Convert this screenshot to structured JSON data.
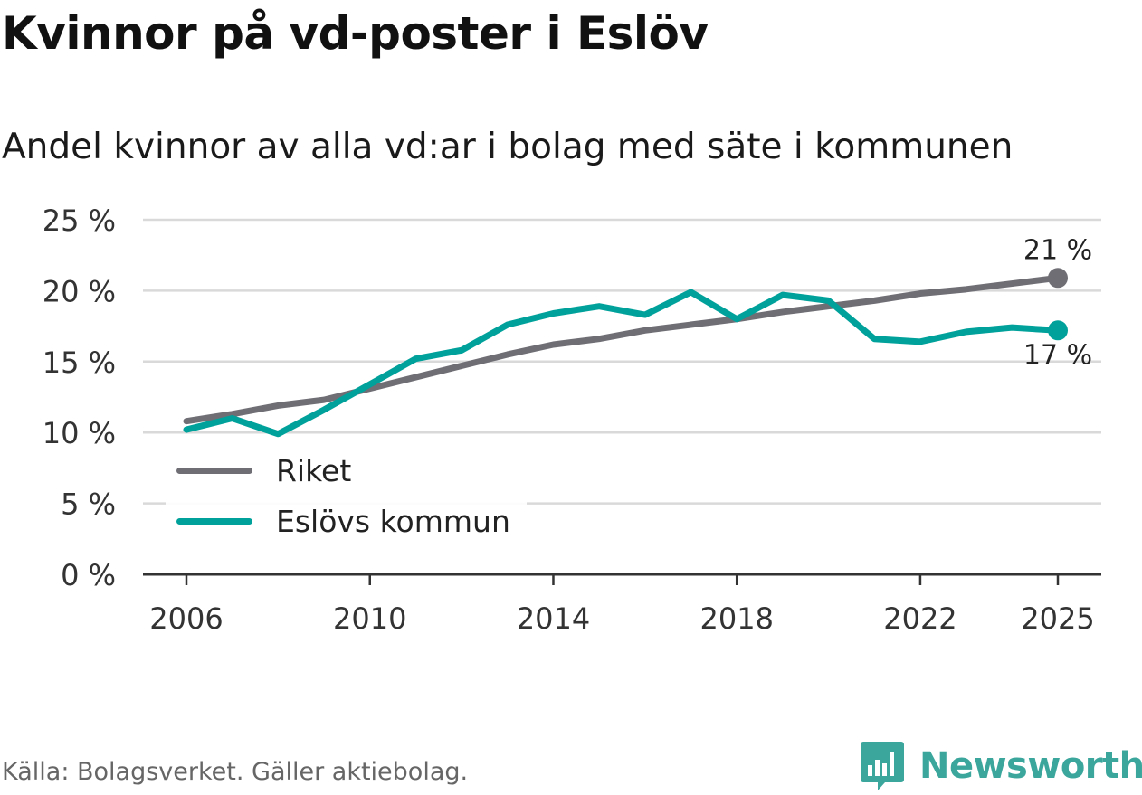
{
  "title": "Kvinnor på vd-poster i Eslöv",
  "subtitle": "Andel kvinnor av alla vd:ar i bolag med säte i kommunen",
  "source": "Källa: Bolagsverket. Gäller aktiebolag.",
  "brand": "Newsworthy",
  "colors": {
    "riket": "#6f6e75",
    "eslov": "#00a19a",
    "grid": "#d9d9d9",
    "axis": "#333333",
    "brand": "#3aa69c"
  },
  "chart_data": {
    "type": "line",
    "title": "Kvinnor på vd-poster i Eslöv",
    "subtitle": "Andel kvinnor av alla vd:ar i bolag med säte i kommunen",
    "x": [
      2006,
      2007,
      2008,
      2009,
      2010,
      2011,
      2012,
      2013,
      2014,
      2015,
      2016,
      2017,
      2018,
      2019,
      2020,
      2021,
      2022,
      2023,
      2024,
      2025
    ],
    "series": [
      {
        "name": "Riket",
        "color": "#6f6e75",
        "values": [
          10.8,
          11.3,
          11.9,
          12.3,
          13.1,
          13.9,
          14.7,
          15.5,
          16.2,
          16.6,
          17.2,
          17.6,
          18.0,
          18.5,
          18.9,
          19.3,
          19.8,
          20.1,
          20.5,
          20.9
        ],
        "end_label": "21 %"
      },
      {
        "name": "Eslövs kommun",
        "color": "#00a19a",
        "values": [
          10.2,
          11.0,
          9.9,
          11.6,
          13.4,
          15.2,
          15.8,
          17.6,
          18.4,
          18.9,
          18.3,
          19.9,
          18.0,
          19.7,
          19.3,
          16.6,
          16.4,
          17.1,
          17.4,
          17.2
        ],
        "end_label": "17 %"
      }
    ],
    "xticks": [
      "2006",
      "2010",
      "2014",
      "2018",
      "2022",
      "2025"
    ],
    "xtick_values": [
      2006,
      2010,
      2014,
      2018,
      2022,
      2025
    ],
    "yticks": [
      "0 %",
      "5 %",
      "10 %",
      "15 %",
      "20 %",
      "25 %"
    ],
    "ytick_values": [
      0,
      5,
      10,
      15,
      20,
      25
    ],
    "ylim": [
      0,
      25
    ],
    "xlim": [
      2005.5,
      2025.5
    ],
    "legend": [
      "Riket",
      "Eslövs kommun"
    ],
    "legend_position": "lower-left"
  }
}
